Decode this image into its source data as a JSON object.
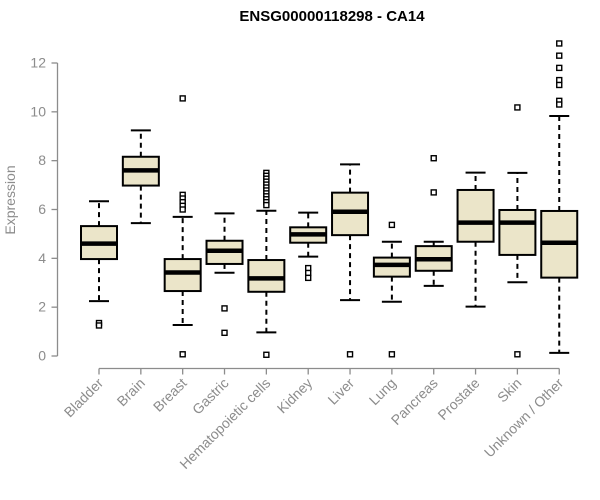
{
  "header": {
    "title": "ENSG00000118298 - CA14"
  },
  "chart_data": {
    "type": "boxplot",
    "title": "ENSG00000118298 - CA14",
    "xlabel": "",
    "ylabel": "Expression",
    "ylim": [
      0,
      13
    ],
    "yticks": [
      0,
      2,
      4,
      6,
      8,
      10,
      12
    ],
    "grid": false,
    "legend": false,
    "categories": [
      "Bladder",
      "Brain",
      "Breast",
      "Gastric",
      "Hematopoietic cells",
      "Kidney",
      "Liver",
      "Lung",
      "Pancreas",
      "Prostate",
      "Skin",
      "Unknown / Other"
    ],
    "series": [
      {
        "category": "Bladder",
        "low": 2.25,
        "q1": 3.97,
        "median": 4.6,
        "q3": 5.32,
        "high": 6.34,
        "outliers": [
          1.35,
          1.25
        ]
      },
      {
        "category": "Brain",
        "low": 5.44,
        "q1": 6.98,
        "median": 7.6,
        "q3": 8.16,
        "high": 9.24,
        "outliers": []
      },
      {
        "category": "Breast",
        "low": 1.27,
        "q1": 2.66,
        "median": 3.42,
        "q3": 3.97,
        "high": 5.7,
        "outliers": [
          10.55,
          6.6,
          6.45,
          6.3,
          6.15,
          6.0,
          0.07
        ]
      },
      {
        "category": "Gastric",
        "low": 3.41,
        "q1": 3.77,
        "median": 4.31,
        "q3": 4.72,
        "high": 5.84,
        "outliers": [
          1.95,
          0.95
        ]
      },
      {
        "category": "Hematopoietic cells",
        "low": 0.97,
        "q1": 2.63,
        "median": 3.18,
        "q3": 3.93,
        "high": 5.95,
        "outliers": [
          7.5,
          7.38,
          7.26,
          7.14,
          7.02,
          6.9,
          6.78,
          6.66,
          6.54,
          6.42,
          6.3,
          6.18,
          0.05
        ]
      },
      {
        "category": "Kidney",
        "low": 4.07,
        "q1": 4.64,
        "median": 4.98,
        "q3": 5.27,
        "high": 5.87,
        "outliers": [
          3.6,
          3.4,
          3.2
        ]
      },
      {
        "category": "Liver",
        "low": 2.29,
        "q1": 4.95,
        "median": 5.91,
        "q3": 6.69,
        "high": 7.85,
        "outliers": [
          0.07
        ]
      },
      {
        "category": "Lung",
        "low": 2.22,
        "q1": 3.25,
        "median": 3.73,
        "q3": 4.03,
        "high": 4.68,
        "outliers": [
          5.37,
          0.07
        ]
      },
      {
        "category": "Pancreas",
        "low": 2.87,
        "q1": 3.49,
        "median": 3.96,
        "q3": 4.5,
        "high": 4.68,
        "outliers": [
          8.1,
          6.7
        ]
      },
      {
        "category": "Prostate",
        "low": 2.02,
        "q1": 4.68,
        "median": 5.46,
        "q3": 6.8,
        "high": 7.51,
        "outliers": []
      },
      {
        "category": "Skin",
        "low": 3.02,
        "q1": 4.14,
        "median": 5.46,
        "q3": 5.98,
        "high": 7.5,
        "outliers": [
          10.18,
          0.07
        ]
      },
      {
        "category": "Unknown / Other",
        "low": 0.13,
        "q1": 3.21,
        "median": 4.64,
        "q3": 5.94,
        "high": 9.83,
        "outliers": [
          12.8,
          12.3,
          11.8,
          11.3,
          11.1,
          10.45,
          10.3
        ]
      }
    ],
    "colors": {
      "background": "#FFFFFF",
      "box_fill": "#EBE5C9",
      "box_border": "#000000",
      "median": "#000000",
      "whisker": "#000000",
      "outlier_fill": "#FFFFFF",
      "axis": "#8C8C8C",
      "tick_label": "#8C8C8C",
      "title": "#000000"
    }
  }
}
